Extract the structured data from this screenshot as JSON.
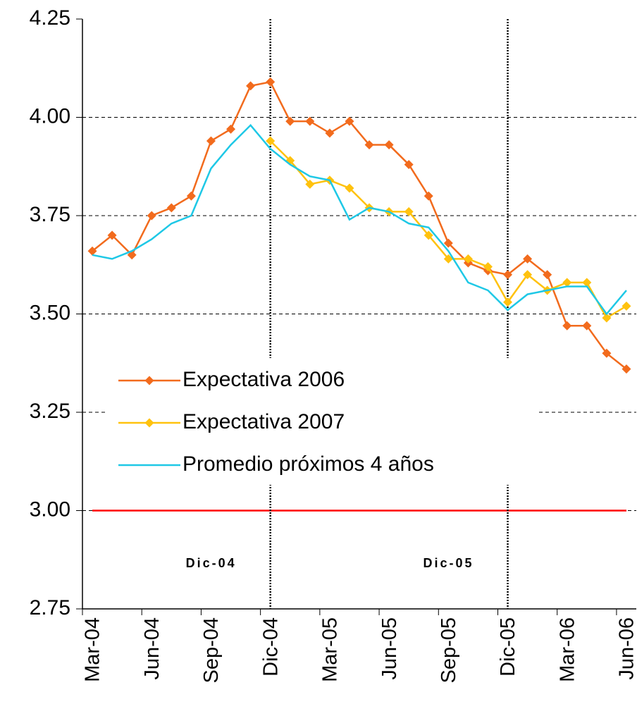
{
  "chart_data": {
    "type": "line",
    "categories": [
      "Mar-04",
      null,
      null,
      "Jun-04",
      null,
      null,
      "Sep-04",
      null,
      null,
      "Dic-04",
      null,
      null,
      "Mar-05",
      null,
      null,
      "Jun-05",
      null,
      null,
      "Sep-05",
      null,
      null,
      "Dic-05",
      null,
      null,
      "Mar-06",
      null,
      null,
      "Jun-06"
    ],
    "series": [
      {
        "name": "Expectativa 2006",
        "color": "#f26b1d",
        "marker": "diamond",
        "values": [
          3.66,
          3.7,
          3.65,
          3.75,
          3.77,
          3.8,
          3.94,
          3.97,
          4.08,
          4.09,
          3.99,
          3.99,
          3.96,
          3.99,
          3.93,
          3.93,
          3.88,
          3.8,
          3.68,
          3.63,
          3.61,
          3.6,
          3.64,
          3.6,
          3.47,
          3.47,
          3.4,
          3.36
        ]
      },
      {
        "name": "Expectativa 2007",
        "color": "#ffc20e",
        "marker": "diamond",
        "values": [
          null,
          null,
          null,
          null,
          null,
          null,
          null,
          null,
          null,
          3.94,
          3.89,
          3.83,
          3.84,
          3.82,
          3.77,
          3.76,
          3.76,
          3.7,
          3.64,
          3.64,
          3.62,
          3.53,
          3.6,
          3.56,
          3.58,
          3.58,
          3.49,
          3.52
        ]
      },
      {
        "name": "Promedio próximos 4 años",
        "color": "#1ec8e6",
        "marker": "none",
        "values": [
          3.65,
          3.64,
          3.66,
          3.69,
          3.73,
          3.75,
          3.87,
          3.93,
          3.98,
          3.92,
          3.88,
          3.85,
          3.84,
          3.74,
          3.77,
          3.76,
          3.73,
          3.72,
          3.66,
          3.58,
          3.56,
          3.51,
          3.55,
          3.56,
          3.57,
          3.57,
          3.5,
          3.56
        ]
      }
    ],
    "reference_line": {
      "value": 3,
      "color": "#ff0000"
    },
    "annotations": [
      "Dic-04",
      "Dic-05"
    ],
    "ylim": [
      2.75,
      4.25
    ],
    "yticks": [
      2.75,
      {
        "value": 3,
        "label": "3.00"
      },
      3.25,
      {
        "value": 3.5,
        "label": "3.50"
      },
      3.75,
      {
        "value": 4,
        "label": "4.00"
      },
      4.25
    ],
    "grid": true
  }
}
